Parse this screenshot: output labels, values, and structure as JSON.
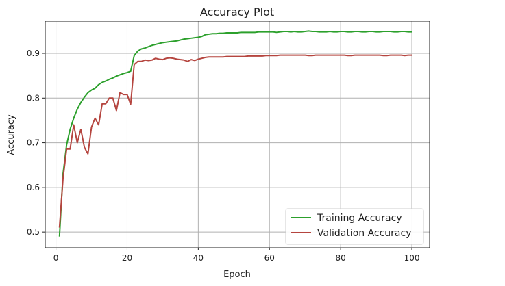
{
  "chart_data": {
    "type": "line",
    "title": "Accuracy Plot",
    "xlabel": "Epoch",
    "ylabel": "Accuracy",
    "xlim": [
      -3,
      105
    ],
    "ylim": [
      0.465,
      0.972
    ],
    "xticks": [
      0,
      20,
      40,
      60,
      80,
      100
    ],
    "yticks": [
      0.5,
      0.6,
      0.7,
      0.8,
      0.9
    ],
    "grid": true,
    "legend_position": "lower-right",
    "series": [
      {
        "name": "Training Accuracy",
        "color": "#2ca02c",
        "x": [
          1,
          2,
          3,
          4,
          5,
          6,
          7,
          8,
          9,
          10,
          11,
          12,
          13,
          14,
          15,
          16,
          17,
          18,
          19,
          20,
          21,
          22,
          23,
          24,
          25,
          26,
          27,
          28,
          29,
          30,
          31,
          32,
          33,
          34,
          35,
          36,
          37,
          38,
          39,
          40,
          41,
          42,
          43,
          44,
          45,
          46,
          47,
          48,
          49,
          50,
          51,
          52,
          53,
          54,
          55,
          56,
          57,
          58,
          59,
          60,
          61,
          62,
          63,
          64,
          65,
          66,
          67,
          68,
          69,
          70,
          71,
          72,
          73,
          74,
          75,
          76,
          77,
          78,
          79,
          80,
          81,
          82,
          83,
          84,
          85,
          86,
          87,
          88,
          89,
          90,
          91,
          92,
          93,
          94,
          95,
          96,
          97,
          98,
          99,
          100
        ],
        "y": [
          0.49,
          0.63,
          0.695,
          0.73,
          0.755,
          0.775,
          0.79,
          0.802,
          0.812,
          0.818,
          0.822,
          0.83,
          0.835,
          0.838,
          0.842,
          0.845,
          0.849,
          0.852,
          0.855,
          0.857,
          0.86,
          0.895,
          0.905,
          0.91,
          0.912,
          0.915,
          0.918,
          0.92,
          0.922,
          0.924,
          0.925,
          0.926,
          0.927,
          0.928,
          0.93,
          0.932,
          0.933,
          0.934,
          0.935,
          0.936,
          0.938,
          0.942,
          0.943,
          0.944,
          0.944,
          0.945,
          0.945,
          0.946,
          0.946,
          0.946,
          0.946,
          0.947,
          0.947,
          0.947,
          0.947,
          0.947,
          0.948,
          0.948,
          0.948,
          0.948,
          0.948,
          0.947,
          0.948,
          0.949,
          0.949,
          0.948,
          0.949,
          0.948,
          0.948,
          0.949,
          0.95,
          0.949,
          0.949,
          0.948,
          0.948,
          0.948,
          0.949,
          0.948,
          0.948,
          0.949,
          0.949,
          0.948,
          0.948,
          0.949,
          0.949,
          0.948,
          0.948,
          0.949,
          0.949,
          0.948,
          0.948,
          0.949,
          0.949,
          0.949,
          0.948,
          0.948,
          0.949,
          0.949,
          0.948,
          0.948
        ]
      },
      {
        "name": "Validation Accuracy",
        "color": "#b5453f",
        "x": [
          1,
          2,
          3,
          4,
          5,
          6,
          7,
          8,
          9,
          10,
          11,
          12,
          13,
          14,
          15,
          16,
          17,
          18,
          19,
          20,
          21,
          22,
          23,
          24,
          25,
          26,
          27,
          28,
          29,
          30,
          31,
          32,
          33,
          34,
          35,
          36,
          37,
          38,
          39,
          40,
          41,
          42,
          43,
          44,
          45,
          46,
          47,
          48,
          49,
          50,
          51,
          52,
          53,
          54,
          55,
          56,
          57,
          58,
          59,
          60,
          61,
          62,
          63,
          64,
          65,
          66,
          67,
          68,
          69,
          70,
          71,
          72,
          73,
          74,
          75,
          76,
          77,
          78,
          79,
          80,
          81,
          82,
          83,
          84,
          85,
          86,
          87,
          88,
          89,
          90,
          91,
          92,
          93,
          94,
          95,
          96,
          97,
          98,
          99,
          100
        ],
        "y": [
          0.51,
          0.62,
          0.686,
          0.686,
          0.74,
          0.7,
          0.73,
          0.69,
          0.675,
          0.735,
          0.755,
          0.74,
          0.787,
          0.787,
          0.8,
          0.8,
          0.772,
          0.812,
          0.808,
          0.808,
          0.786,
          0.875,
          0.882,
          0.882,
          0.885,
          0.884,
          0.885,
          0.889,
          0.887,
          0.886,
          0.889,
          0.89,
          0.889,
          0.887,
          0.886,
          0.885,
          0.882,
          0.886,
          0.884,
          0.887,
          0.889,
          0.891,
          0.892,
          0.892,
          0.892,
          0.892,
          0.892,
          0.893,
          0.893,
          0.893,
          0.893,
          0.893,
          0.893,
          0.894,
          0.894,
          0.894,
          0.894,
          0.894,
          0.895,
          0.895,
          0.895,
          0.895,
          0.896,
          0.896,
          0.896,
          0.896,
          0.896,
          0.896,
          0.896,
          0.896,
          0.895,
          0.895,
          0.896,
          0.896,
          0.896,
          0.896,
          0.896,
          0.896,
          0.896,
          0.896,
          0.896,
          0.895,
          0.895,
          0.896,
          0.896,
          0.896,
          0.896,
          0.896,
          0.896,
          0.896,
          0.896,
          0.895,
          0.895,
          0.896,
          0.896,
          0.896,
          0.896,
          0.895,
          0.896,
          0.896
        ]
      }
    ]
  }
}
